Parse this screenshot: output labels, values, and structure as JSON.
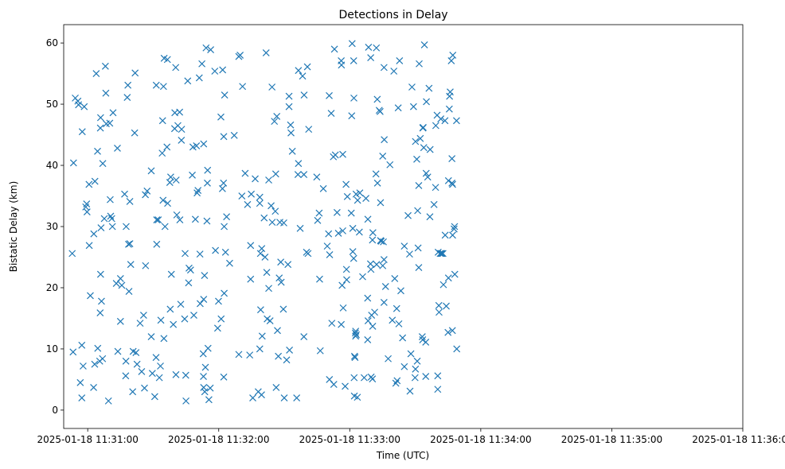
{
  "chart_data": {
    "type": "scatter",
    "title": "Detections in Delay",
    "xlabel": "Time (UTC)",
    "ylabel": "Bistatic Delay (km)",
    "marker": "x",
    "color": "#1f77b4",
    "x_unit": "seconds after 2025-01-18 11:30:00",
    "xlim": [
      49,
      360
    ],
    "ylim": [
      -3,
      63
    ],
    "x_ticks": [
      {
        "value": 60,
        "label": "2025-01-18 11:31:00"
      },
      {
        "value": 120,
        "label": "2025-01-18 11:32:00"
      },
      {
        "value": 180,
        "label": "2025-01-18 11:33:00"
      },
      {
        "value": 240,
        "label": "2025-01-18 11:34:00"
      },
      {
        "value": 300,
        "label": "2025-01-18 11:35:00"
      },
      {
        "value": 360,
        "label": "2025-01-18 11:36:00"
      }
    ],
    "y_ticks": [
      {
        "value": 0,
        "label": "0"
      },
      {
        "value": 10,
        "label": "10"
      },
      {
        "value": 20,
        "label": "20"
      },
      {
        "value": 30,
        "label": "30"
      },
      {
        "value": 40,
        "label": "40"
      },
      {
        "value": 50,
        "label": "50"
      },
      {
        "value": 60,
        "label": "60"
      }
    ],
    "points": [
      [
        52.9,
        25.6
      ],
      [
        53.5,
        40.4
      ],
      [
        53.3,
        9.5
      ],
      [
        54.3,
        51.0
      ],
      [
        55.5,
        50.5
      ],
      [
        55.8,
        49.9
      ],
      [
        56.6,
        4.5
      ],
      [
        57.3,
        10.6
      ],
      [
        57.5,
        45.5
      ],
      [
        57.3,
        2.0
      ],
      [
        57.9,
        7.2
      ],
      [
        58.4,
        49.6
      ],
      [
        59.1,
        33.2
      ],
      [
        59.5,
        33.7
      ],
      [
        59.7,
        32.4
      ],
      [
        60.6,
        36.9
      ],
      [
        60.7,
        26.9
      ],
      [
        61.2,
        18.7
      ],
      [
        62.7,
        3.7
      ],
      [
        62.8,
        28.8
      ],
      [
        63.2,
        7.5
      ],
      [
        63.3,
        37.4
      ],
      [
        63.9,
        55.0
      ],
      [
        64.5,
        42.3
      ],
      [
        64.6,
        10.1
      ],
      [
        65.5,
        8.0
      ],
      [
        65.8,
        46.1
      ],
      [
        65.9,
        47.8
      ],
      [
        65.9,
        22.2
      ],
      [
        65.7,
        15.9
      ],
      [
        66.3,
        17.8
      ],
      [
        66.1,
        29.8
      ],
      [
        66.8,
        8.4
      ],
      [
        66.9,
        40.3
      ],
      [
        67.6,
        31.3
      ],
      [
        68.1,
        56.2
      ],
      [
        68.3,
        51.8
      ],
      [
        68.5,
        46.8
      ],
      [
        69.5,
        1.5
      ],
      [
        70.3,
        34.4
      ],
      [
        70.1,
        46.9
      ],
      [
        70.5,
        31.7
      ],
      [
        71.0,
        31.3
      ],
      [
        71.3,
        30.0
      ],
      [
        71.6,
        48.6
      ],
      [
        73.1,
        20.7
      ],
      [
        73.6,
        42.8
      ],
      [
        73.8,
        9.6
      ],
      [
        75.0,
        14.5
      ],
      [
        75.0,
        21.5
      ],
      [
        75.6,
        20.4
      ],
      [
        76.9,
        35.3
      ],
      [
        77.4,
        5.6
      ],
      [
        77.6,
        30.0
      ],
      [
        77.5,
        8.0
      ],
      [
        78.1,
        51.1
      ],
      [
        78.4,
        53.1
      ],
      [
        78.7,
        27.1
      ],
      [
        78.9,
        19.4
      ],
      [
        79.3,
        27.2
      ],
      [
        79.3,
        34.1
      ],
      [
        79.7,
        23.8
      ],
      [
        80.6,
        3.0
      ],
      [
        80.8,
        9.6
      ],
      [
        81.5,
        45.3
      ],
      [
        81.7,
        55.1
      ],
      [
        82.1,
        9.4
      ],
      [
        82.6,
        7.5
      ],
      [
        84.0,
        14.2
      ],
      [
        84.7,
        6.3
      ],
      [
        86.0,
        3.6
      ],
      [
        85.6,
        15.5
      ],
      [
        86.4,
        35.2
      ],
      [
        86.5,
        23.6
      ],
      [
        87.2,
        35.8
      ],
      [
        89.1,
        39.1
      ],
      [
        89.1,
        12.0
      ],
      [
        89.6,
        6.0
      ],
      [
        91.4,
        53.1
      ],
      [
        90.7,
        2.2
      ],
      [
        91.3,
        8.6
      ],
      [
        91.6,
        27.1
      ],
      [
        91.6,
        31.1
      ],
      [
        92.3,
        31.1
      ],
      [
        92.8,
        5.3
      ],
      [
        93.3,
        7.2
      ],
      [
        93.5,
        14.7
      ],
      [
        94.1,
        42.0
      ],
      [
        94.3,
        47.3
      ],
      [
        94.5,
        34.3
      ],
      [
        94.7,
        52.9
      ],
      [
        94.9,
        11.7
      ],
      [
        95.0,
        57.5
      ],
      [
        95.4,
        30.0
      ],
      [
        96.3,
        43.0
      ],
      [
        96.5,
        57.3
      ],
      [
        96.6,
        33.8
      ],
      [
        97.6,
        37.2
      ],
      [
        98.0,
        38.1
      ],
      [
        97.8,
        16.5
      ],
      [
        98.3,
        22.2
      ],
      [
        99.2,
        14.0
      ],
      [
        99.9,
        48.6
      ],
      [
        99.8,
        46.0
      ],
      [
        100.4,
        5.8
      ],
      [
        100.5,
        37.6
      ],
      [
        100.3,
        56.0
      ],
      [
        100.8,
        31.9
      ],
      [
        101.3,
        46.5
      ],
      [
        102.1,
        48.7
      ],
      [
        102.2,
        31.1
      ],
      [
        102.9,
        44.1
      ],
      [
        102.6,
        17.3
      ],
      [
        103.0,
        45.9
      ],
      [
        104.4,
        14.9
      ],
      [
        104.6,
        25.6
      ],
      [
        104.9,
        5.7
      ],
      [
        105.0,
        1.5
      ],
      [
        105.8,
        53.8
      ],
      [
        106.2,
        20.8
      ],
      [
        106.4,
        23.2
      ],
      [
        107.1,
        22.9
      ],
      [
        107.9,
        38.4
      ],
      [
        108.6,
        15.5
      ],
      [
        108.2,
        43.0
      ],
      [
        109.3,
        31.2
      ],
      [
        109.8,
        43.2
      ],
      [
        110.1,
        35.5
      ],
      [
        110.5,
        35.9
      ],
      [
        111.4,
        25.5
      ],
      [
        111.1,
        54.3
      ],
      [
        111.5,
        17.4
      ],
      [
        112.3,
        56.6
      ],
      [
        113.1,
        18.1
      ],
      [
        113.0,
        5.5
      ],
      [
        113.1,
        3.7
      ],
      [
        112.9,
        9.2
      ],
      [
        113.1,
        43.5
      ],
      [
        113.5,
        22.0
      ],
      [
        113.6,
        3.0
      ],
      [
        113.9,
        7.0
      ],
      [
        114.2,
        59.2
      ],
      [
        114.6,
        30.9
      ],
      [
        114.8,
        37.1
      ],
      [
        114.9,
        39.2
      ],
      [
        115.1,
        10.1
      ],
      [
        115.5,
        1.7
      ],
      [
        116.3,
        58.9
      ],
      [
        116.1,
        3.6
      ],
      [
        118.2,
        55.4
      ],
      [
        118.5,
        26.1
      ],
      [
        119.5,
        13.4
      ],
      [
        119.9,
        17.8
      ],
      [
        121.0,
        47.9
      ],
      [
        121.1,
        14.9
      ],
      [
        121.7,
        36.2
      ],
      [
        122.2,
        37.1
      ],
      [
        122.3,
        44.7
      ],
      [
        121.8,
        55.6
      ],
      [
        122.3,
        5.4
      ],
      [
        122.7,
        51.5
      ],
      [
        122.5,
        19.1
      ],
      [
        122.5,
        30.0
      ],
      [
        123.1,
        25.8
      ],
      [
        123.6,
        31.6
      ],
      [
        125.0,
        24.0
      ],
      [
        127.1,
        44.9
      ],
      [
        129.2,
        9.1
      ],
      [
        129.2,
        57.8
      ],
      [
        129.8,
        58.0
      ],
      [
        130.6,
        35.0
      ],
      [
        130.9,
        52.9
      ],
      [
        132.1,
        38.7
      ],
      [
        133.2,
        33.6
      ],
      [
        134.2,
        9.0
      ],
      [
        134.6,
        21.4
      ],
      [
        134.9,
        35.3
      ],
      [
        134.6,
        26.9
      ],
      [
        135.6,
        2.0
      ],
      [
        136.7,
        37.8
      ],
      [
        138.1,
        3.0
      ],
      [
        138.8,
        10.0
      ],
      [
        138.8,
        33.8
      ],
      [
        138.8,
        34.8
      ],
      [
        139.1,
        25.6
      ],
      [
        139.2,
        16.4
      ],
      [
        139.6,
        2.5
      ],
      [
        139.7,
        26.4
      ],
      [
        139.9,
        12.1
      ],
      [
        140.8,
        31.4
      ],
      [
        141.2,
        25.0
      ],
      [
        141.7,
        58.4
      ],
      [
        142.0,
        22.5
      ],
      [
        142.2,
        14.9
      ],
      [
        142.9,
        37.6
      ],
      [
        142.9,
        19.9
      ],
      [
        143.5,
        14.6
      ],
      [
        144.0,
        33.4
      ],
      [
        144.4,
        52.8
      ],
      [
        144.5,
        30.7
      ],
      [
        145.5,
        47.2
      ],
      [
        145.9,
        32.5
      ],
      [
        146.1,
        38.6
      ],
      [
        146.3,
        3.7
      ],
      [
        146.6,
        48.0
      ],
      [
        146.9,
        13.0
      ],
      [
        147.3,
        8.8
      ],
      [
        147.7,
        21.6
      ],
      [
        148.0,
        30.7
      ],
      [
        148.4,
        24.2
      ],
      [
        148.6,
        20.9
      ],
      [
        149.6,
        16.5
      ],
      [
        149.8,
        30.6
      ],
      [
        150.0,
        2.0
      ],
      [
        151.1,
        8.2
      ],
      [
        151.7,
        23.8
      ],
      [
        152.2,
        51.3
      ],
      [
        152.2,
        49.6
      ],
      [
        152.4,
        9.8
      ],
      [
        152.9,
        46.6
      ],
      [
        153.1,
        45.3
      ],
      [
        153.7,
        42.3
      ],
      [
        155.7,
        2.0
      ],
      [
        156.3,
        38.5
      ],
      [
        156.5,
        40.3
      ],
      [
        156.5,
        55.5
      ],
      [
        157.3,
        29.7
      ],
      [
        158.4,
        54.6
      ],
      [
        159.1,
        51.5
      ],
      [
        159.0,
        38.5
      ],
      [
        159.0,
        12.0
      ],
      [
        160.2,
        25.8
      ],
      [
        160.6,
        56.1
      ],
      [
        160.9,
        25.6
      ],
      [
        161.2,
        45.9
      ],
      [
        164.9,
        38.1
      ],
      [
        165.3,
        31.0
      ],
      [
        166.0,
        32.2
      ],
      [
        166.2,
        21.4
      ],
      [
        166.5,
        9.7
      ],
      [
        167.9,
        36.2
      ],
      [
        169.7,
        26.8
      ],
      [
        170.3,
        28.8
      ],
      [
        170.6,
        51.4
      ],
      [
        170.7,
        5.0
      ],
      [
        170.8,
        25.4
      ],
      [
        171.5,
        48.5
      ],
      [
        171.8,
        14.2
      ],
      [
        172.5,
        41.4
      ],
      [
        172.7,
        4.2
      ],
      [
        173.0,
        59.0
      ],
      [
        173.4,
        41.7
      ],
      [
        174.2,
        32.3
      ],
      [
        174.8,
        28.9
      ],
      [
        176.1,
        57.1
      ],
      [
        176.2,
        56.4
      ],
      [
        176.1,
        14.0
      ],
      [
        176.5,
        20.4
      ],
      [
        176.8,
        41.8
      ],
      [
        176.8,
        29.3
      ],
      [
        177.0,
        16.7
      ],
      [
        177.9,
        3.9
      ],
      [
        178.3,
        36.9
      ],
      [
        178.5,
        23.0
      ],
      [
        178.6,
        21.3
      ],
      [
        178.9,
        34.9
      ],
      [
        180.7,
        32.2
      ],
      [
        181.1,
        59.9
      ],
      [
        180.9,
        48.1
      ],
      [
        181.4,
        29.7
      ],
      [
        181.4,
        25.9
      ],
      [
        181.8,
        57.1
      ],
      [
        181.9,
        51.0
      ],
      [
        181.8,
        24.8
      ],
      [
        182.0,
        5.3
      ],
      [
        182.1,
        2.3
      ],
      [
        182.2,
        8.8
      ],
      [
        182.4,
        8.6
      ],
      [
        182.6,
        12.6
      ],
      [
        182.7,
        12.1
      ],
      [
        182.7,
        12.9
      ],
      [
        182.9,
        35.3
      ],
      [
        183.0,
        12.3
      ],
      [
        183.5,
        2.1
      ],
      [
        183.6,
        34.3
      ],
      [
        184.4,
        29.1
      ],
      [
        184.6,
        35.5
      ],
      [
        185.9,
        21.8
      ],
      [
        186.6,
        5.3
      ],
      [
        187.4,
        34.6
      ],
      [
        188.2,
        18.3
      ],
      [
        188.2,
        11.5
      ],
      [
        188.3,
        31.2
      ],
      [
        188.4,
        14.6
      ],
      [
        188.6,
        59.3
      ],
      [
        189.5,
        23.9
      ],
      [
        189.7,
        23.0
      ],
      [
        189.6,
        57.6
      ],
      [
        189.8,
        5.4
      ],
      [
        190.0,
        15.5
      ],
      [
        190.4,
        5.1
      ],
      [
        190.5,
        13.7
      ],
      [
        190.4,
        27.8
      ],
      [
        190.6,
        29.0
      ],
      [
        191.4,
        16.0
      ],
      [
        192.2,
        59.2
      ],
      [
        192.0,
        38.6
      ],
      [
        192.3,
        23.8
      ],
      [
        192.6,
        50.8
      ],
      [
        192.7,
        37.1
      ],
      [
        193.5,
        49.0
      ],
      [
        193.9,
        48.8
      ],
      [
        194.1,
        33.9
      ],
      [
        194.1,
        27.7
      ],
      [
        194.4,
        27.6
      ],
      [
        195.1,
        41.5
      ],
      [
        195.1,
        23.6
      ],
      [
        195.4,
        27.5
      ],
      [
        195.7,
        24.6
      ],
      [
        195.7,
        56.0
      ],
      [
        195.8,
        44.2
      ],
      [
        195.7,
        17.6
      ],
      [
        196.4,
        20.2
      ],
      [
        197.6,
        8.4
      ],
      [
        198.4,
        40.1
      ],
      [
        199.5,
        14.7
      ],
      [
        200.2,
        55.4
      ],
      [
        200.6,
        21.5
      ],
      [
        201.1,
        4.4
      ],
      [
        201.5,
        16.6
      ],
      [
        201.7,
        4.8
      ],
      [
        202.2,
        49.4
      ],
      [
        202.5,
        14.1
      ],
      [
        202.8,
        57.1
      ],
      [
        203.4,
        19.5
      ],
      [
        204.2,
        11.8
      ],
      [
        205.0,
        26.8
      ],
      [
        205.0,
        7.1
      ],
      [
        206.7,
        31.8
      ],
      [
        207.4,
        25.5
      ],
      [
        207.6,
        3.1
      ],
      [
        208.0,
        9.2
      ],
      [
        208.5,
        52.8
      ],
      [
        209.2,
        49.6
      ],
      [
        209.9,
        5.3
      ],
      [
        210.1,
        6.7
      ],
      [
        210.1,
        43.9
      ],
      [
        210.7,
        41.0
      ],
      [
        210.9,
        8.0
      ],
      [
        211.1,
        32.6
      ],
      [
        211.3,
        26.5
      ],
      [
        211.6,
        23.3
      ],
      [
        211.6,
        36.7
      ],
      [
        211.8,
        56.6
      ],
      [
        212.3,
        44.4
      ],
      [
        213.2,
        12.0
      ],
      [
        213.4,
        11.5
      ],
      [
        213.5,
        46.1
      ],
      [
        213.6,
        46.2
      ],
      [
        213.9,
        42.9
      ],
      [
        214.2,
        59.7
      ],
      [
        214.8,
        11.1
      ],
      [
        214.8,
        5.5
      ],
      [
        215.0,
        38.7
      ],
      [
        215.1,
        50.4
      ],
      [
        215.7,
        38.1
      ],
      [
        216.3,
        52.6
      ],
      [
        216.7,
        31.6
      ],
      [
        216.8,
        42.6
      ],
      [
        218.6,
        33.6
      ],
      [
        219.3,
        36.4
      ],
      [
        219.4,
        46.5
      ],
      [
        220.0,
        48.2
      ],
      [
        220.3,
        5.6
      ],
      [
        220.3,
        3.4
      ],
      [
        220.5,
        25.8
      ],
      [
        220.8,
        17.1
      ],
      [
        220.9,
        16.0
      ],
      [
        221.4,
        25.6
      ],
      [
        221.7,
        47.6
      ],
      [
        221.9,
        25.6
      ],
      [
        222.2,
        25.6
      ],
      [
        222.7,
        25.6
      ],
      [
        222.9,
        20.5
      ],
      [
        223.6,
        47.3
      ],
      [
        223.7,
        28.6
      ],
      [
        224.2,
        17.0
      ],
      [
        225.0,
        12.7
      ],
      [
        225.2,
        37.5
      ],
      [
        225.2,
        21.6
      ],
      [
        225.6,
        49.2
      ],
      [
        225.7,
        51.3
      ],
      [
        226.0,
        52.0
      ],
      [
        226.5,
        57.1
      ],
      [
        226.8,
        37.1
      ],
      [
        226.8,
        41.1
      ],
      [
        227.0,
        13.0
      ],
      [
        227.1,
        28.6
      ],
      [
        227.1,
        36.9
      ],
      [
        227.2,
        58.0
      ],
      [
        227.8,
        29.6
      ],
      [
        228.0,
        30.0
      ],
      [
        228.1,
        22.2
      ],
      [
        228.9,
        47.3
      ],
      [
        229.0,
        10.0
      ]
    ]
  }
}
